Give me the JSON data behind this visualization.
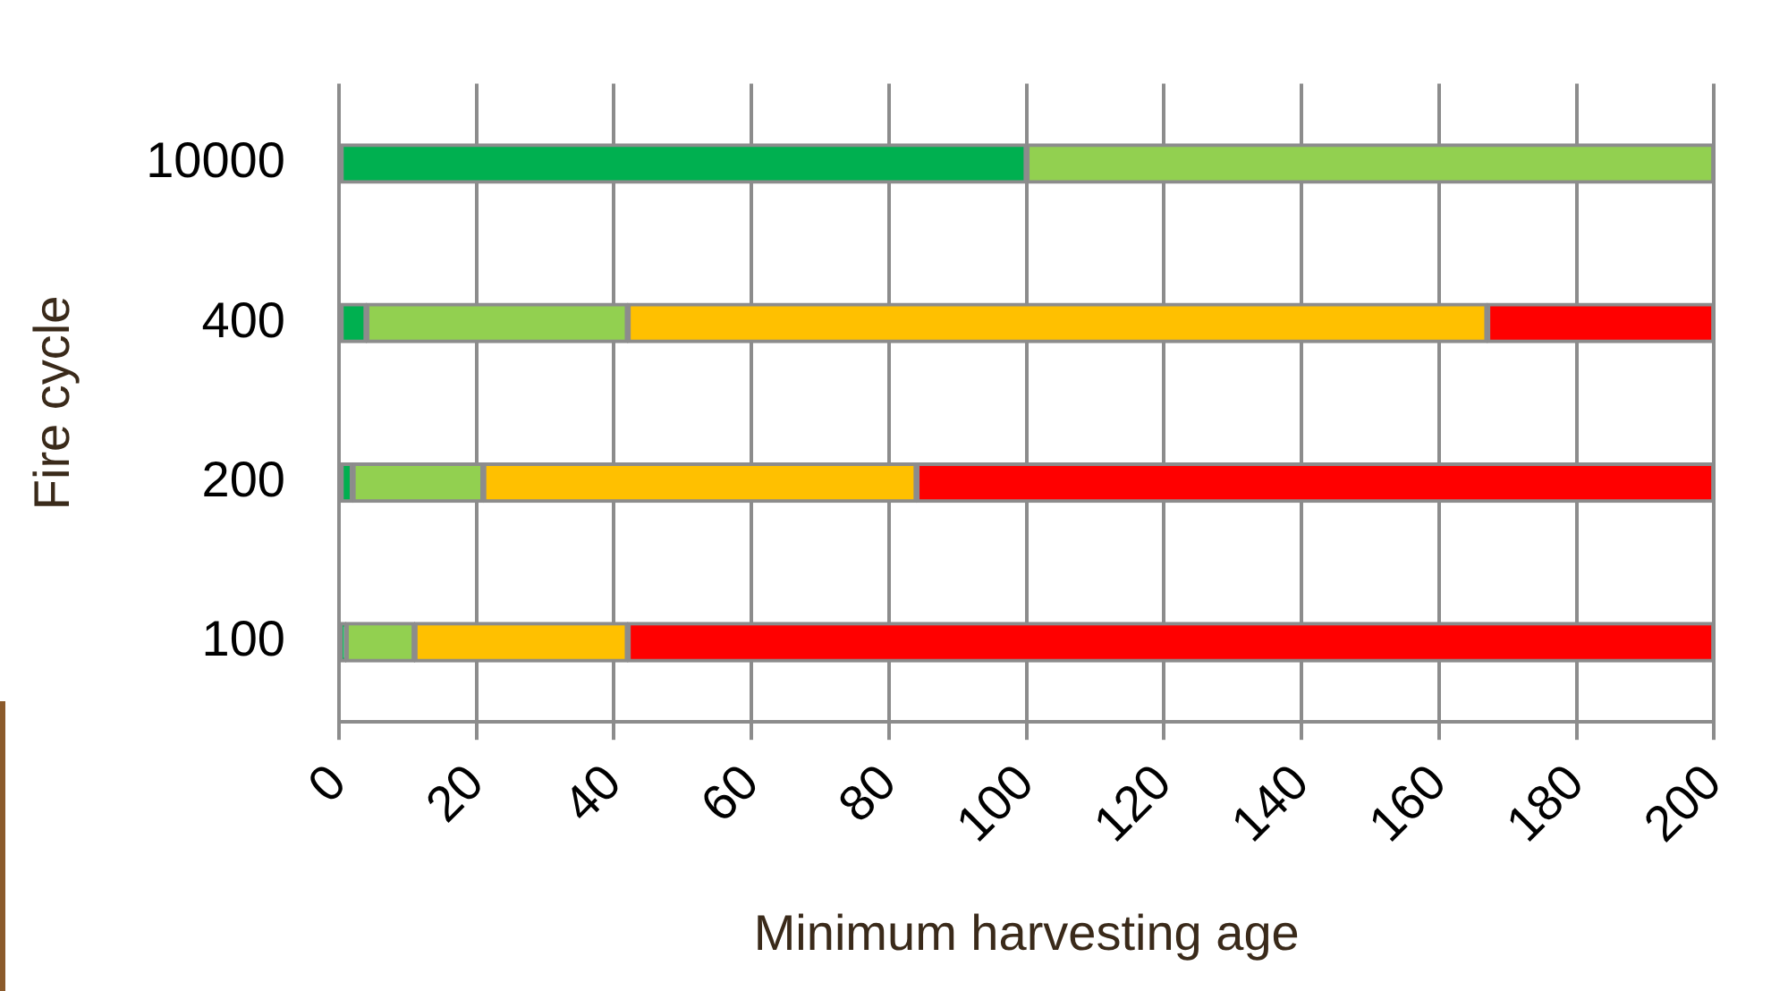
{
  "chart_data": {
    "type": "bar",
    "orientation": "horizontal",
    "stacked": true,
    "xlabel": "Minimum harvesting age",
    "ylabel": "Fire cycle",
    "categories": [
      "10000",
      "400",
      "200",
      "100"
    ],
    "series": [
      {
        "color": "#00b050",
        "values": [
          100,
          4,
          2,
          1
        ]
      },
      {
        "color": "#92d050",
        "values": [
          100,
          38,
          19,
          10
        ]
      },
      {
        "color": "#ffc000",
        "values": [
          null,
          125,
          63,
          31
        ]
      },
      {
        "color": "#ff0000",
        "values": [
          null,
          33,
          116,
          158
        ]
      }
    ],
    "xlim": [
      0,
      200
    ],
    "xticks": [
      0,
      20,
      40,
      60,
      80,
      100,
      120,
      140,
      160,
      180,
      200
    ],
    "grid": "x",
    "legend": false
  }
}
